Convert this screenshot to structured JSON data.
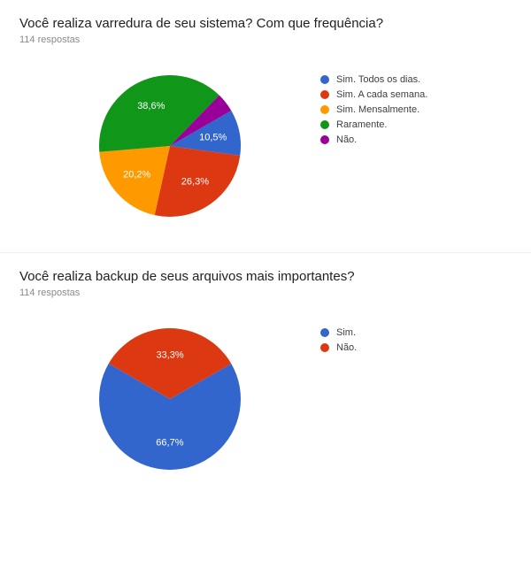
{
  "chart1": {
    "type": "pie",
    "title": "Você realiza varredura de seu sistema? Com que frequência?",
    "subtitle": "114 respostas",
    "title_fontsize": 15,
    "subtitle_fontsize": 11,
    "subtitle_color": "#8a8a8a",
    "radius": 80,
    "start_angle_deg": 60,
    "label_fontsize": 11,
    "label_color": "#ffffff",
    "background_color": "#ffffff",
    "slices": [
      {
        "label": "Sim. Todos os dias.",
        "value": 10.5,
        "value_label": "10,5%",
        "color": "#3366cc",
        "show_label": true
      },
      {
        "label": "Sim. A cada semana.",
        "value": 26.3,
        "value_label": "26,3%",
        "color": "#dc3912",
        "show_label": true
      },
      {
        "label": "Sim. Mensalmente.",
        "value": 20.2,
        "value_label": "20,2%",
        "color": "#ff9900",
        "show_label": true
      },
      {
        "label": "Raramente.",
        "value": 38.6,
        "value_label": "38,6%",
        "color": "#109618",
        "show_label": true
      },
      {
        "label": "Não.",
        "value": 4.4,
        "value_label": "",
        "color": "#990099",
        "show_label": false
      }
    ]
  },
  "chart2": {
    "type": "pie",
    "title": "Você realiza backup de seus arquivos mais importantes?",
    "subtitle": "114 respostas",
    "title_fontsize": 15,
    "subtitle_fontsize": 11,
    "subtitle_color": "#8a8a8a",
    "radius": 80,
    "start_angle_deg": 60,
    "label_fontsize": 11,
    "label_color": "#ffffff",
    "background_color": "#ffffff",
    "slices": [
      {
        "label": "Sim.",
        "value": 66.7,
        "value_label": "66,7%",
        "color": "#3366cc",
        "show_label": true
      },
      {
        "label": "Não.",
        "value": 33.3,
        "value_label": "33,3%",
        "color": "#dc3912",
        "show_label": true
      }
    ]
  }
}
